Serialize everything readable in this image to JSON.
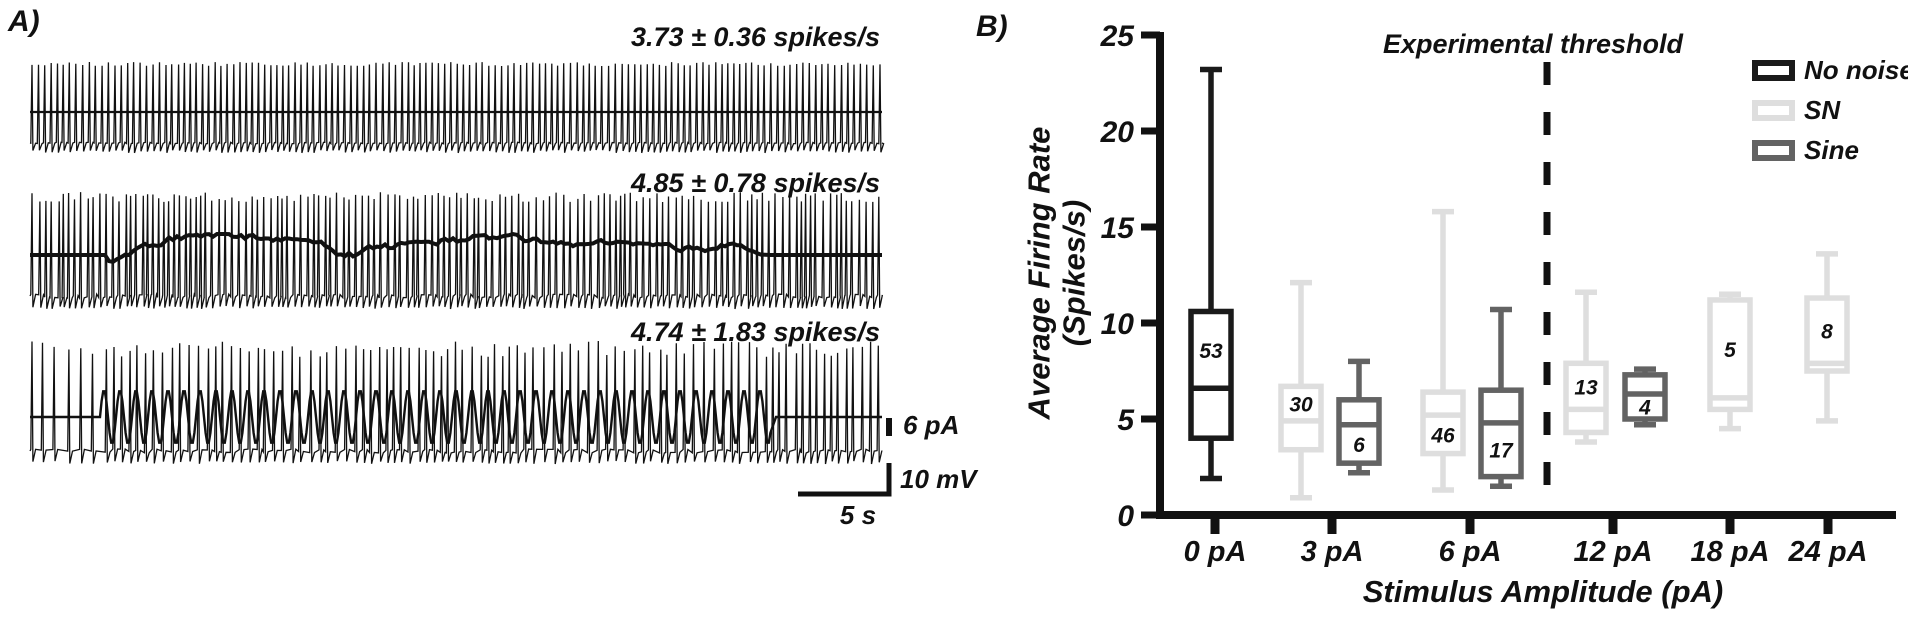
{
  "panel_a": {
    "label": "A)",
    "traces": [
      {
        "rate_label": "3.73 ± 0.36 spikes/s",
        "stimulus": "none"
      },
      {
        "rate_label": "4.85 ± 0.78 spikes/s",
        "stimulus": "noise"
      },
      {
        "rate_label": "4.74 ± 1.83 spikes/s",
        "stimulus": "sine"
      }
    ],
    "scale_bars": {
      "current": "6 pA",
      "voltage": "10 mV",
      "time": "5 s"
    }
  },
  "panel_b": {
    "label": "B)"
  },
  "chart_data": {
    "type": "boxplot",
    "title": "",
    "xlabel": "Stimulus Amplitude (pA)",
    "ylabel": "Average Firing Rate (Spikes/s)",
    "ylabel_line1": "Average Firing Rate",
    "ylabel_line2": "(Spikes/s)",
    "ylim": [
      0,
      25
    ],
    "yticks": [
      0,
      5,
      10,
      15,
      20,
      25
    ],
    "categories": [
      "0 pA",
      "3 pA",
      "6 pA",
      "12 pA",
      "18 pA",
      "24 pA"
    ],
    "threshold": {
      "label": "Experimental threshold",
      "between": [
        "6 pA",
        "12 pA"
      ]
    },
    "legend": [
      {
        "name": "No noise",
        "color": "#1a1a1a"
      },
      {
        "name": "SN",
        "color": "#dedede"
      },
      {
        "name": "Sine",
        "color": "#636363"
      }
    ],
    "legend_position": "top-right",
    "grid": false,
    "boxes": [
      {
        "category": "0 pA",
        "series": "No noise",
        "n": 53,
        "whisker_low": 1.9,
        "q1": 4.0,
        "median": 6.6,
        "q3": 10.6,
        "whisker_high": 23.2,
        "n_label_pos": "upper"
      },
      {
        "category": "3 pA",
        "series": "SN",
        "n": 30,
        "whisker_low": 0.9,
        "q1": 3.4,
        "median": 4.9,
        "q3": 6.7,
        "whisker_high": 12.1,
        "n_label_pos": "upper"
      },
      {
        "category": "3 pA",
        "series": "Sine",
        "n": 6,
        "whisker_low": 2.2,
        "q1": 2.7,
        "median": 4.7,
        "q3": 6.0,
        "whisker_high": 8.0,
        "n_label_pos": "lower"
      },
      {
        "category": "6 pA",
        "series": "SN",
        "n": 46,
        "whisker_low": 1.3,
        "q1": 3.2,
        "median": 5.2,
        "q3": 6.4,
        "whisker_high": 15.8,
        "n_label_pos": "lower"
      },
      {
        "category": "6 pA",
        "series": "Sine",
        "n": 17,
        "whisker_low": 1.5,
        "q1": 2.0,
        "median": 4.8,
        "q3": 6.5,
        "whisker_high": 10.7,
        "n_label_pos": "lower"
      },
      {
        "category": "12 pA",
        "series": "SN",
        "n": 13,
        "whisker_low": 3.8,
        "q1": 4.3,
        "median": 5.5,
        "q3": 7.9,
        "whisker_high": 11.6,
        "n_label_pos": "upper"
      },
      {
        "category": "12 pA",
        "series": "Sine",
        "n": 4,
        "whisker_low": 4.7,
        "q1": 5.0,
        "median": 6.3,
        "q3": 7.3,
        "whisker_high": 7.6,
        "n_label_pos": "lower"
      },
      {
        "category": "18 pA",
        "series": "SN",
        "n": 5,
        "whisker_low": 4.5,
        "q1": 5.5,
        "median": 6.1,
        "q3": 11.2,
        "whisker_high": 11.5,
        "n_label_pos": "upper"
      },
      {
        "category": "24 pA",
        "series": "SN",
        "n": 8,
        "whisker_low": 4.9,
        "q1": 7.5,
        "median": 7.9,
        "q3": 11.3,
        "whisker_high": 13.6,
        "n_label_pos": "upper"
      }
    ]
  }
}
